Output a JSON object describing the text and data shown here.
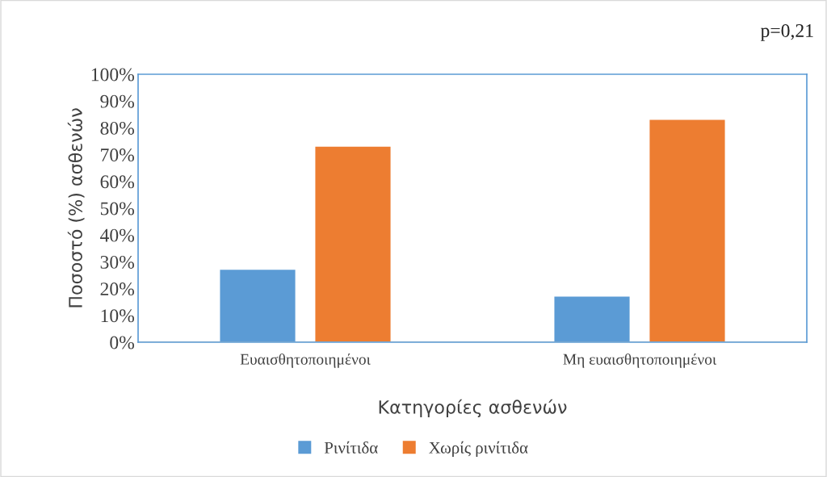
{
  "chart_data": {
    "type": "bar",
    "xlabel": "Κατηγορίες ασθενών",
    "ylabel": "Ποσοστό (%) ασθενών",
    "categories": [
      "Ευαισθητοποιημένοι",
      "Μη ευαισθητοποιημένοι"
    ],
    "series": [
      {
        "name": "Ρινίτιδα",
        "color": "#5b9bd5",
        "values": [
          27,
          17
        ]
      },
      {
        "name": "Χωρίς ρινίτιδα",
        "color": "#ed7d31",
        "values": [
          73,
          83
        ]
      }
    ],
    "ylim": [
      0,
      100
    ],
    "yticks": [
      {
        "value": 0,
        "label": "0%"
      },
      {
        "value": 10,
        "label": "10%"
      },
      {
        "value": 20,
        "label": "20%"
      },
      {
        "value": 30,
        "label": "30%"
      },
      {
        "value": 40,
        "label": "40%"
      },
      {
        "value": 50,
        "label": "50%"
      },
      {
        "value": 60,
        "label": "60%"
      },
      {
        "value": 70,
        "label": "70%"
      },
      {
        "value": 80,
        "label": "80%"
      },
      {
        "value": 90,
        "label": "90%"
      },
      {
        "value": 100,
        "label": "100%"
      }
    ],
    "annotations": [
      "p=0,21"
    ],
    "legend": "bottom",
    "grid": false
  }
}
